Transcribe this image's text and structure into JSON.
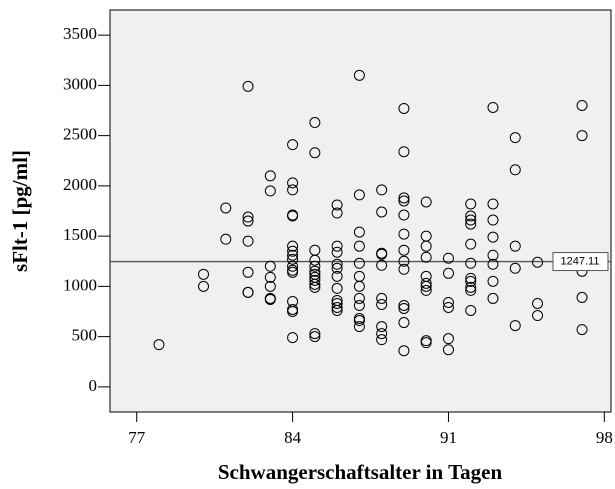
{
  "chart_data": {
    "type": "scatter",
    "x_label": "Schwangerschaftsalter in Tagen",
    "y_label": "sFlt-1 [pg/ml]",
    "x": [
      78,
      80,
      80,
      81,
      81,
      82,
      82,
      82,
      82,
      82,
      82,
      82,
      83,
      83,
      83,
      83,
      83,
      83,
      83,
      84,
      84,
      84,
      84,
      84,
      84,
      84,
      84,
      84,
      84,
      84,
      84,
      84,
      84,
      84,
      84,
      85,
      85,
      85,
      85,
      85,
      85,
      85,
      85,
      85,
      85,
      85,
      85,
      85,
      86,
      86,
      86,
      86,
      86,
      86,
      86,
      86,
      86,
      86,
      86,
      86,
      87,
      87,
      87,
      87,
      87,
      87,
      87,
      87,
      87,
      87,
      87,
      87,
      88,
      88,
      88,
      88,
      88,
      88,
      88,
      88,
      88,
      88,
      89,
      89,
      89,
      89,
      89,
      89,
      89,
      89,
      89,
      89,
      89,
      89,
      89,
      90,
      90,
      90,
      90,
      90,
      90,
      90,
      90,
      90,
      90,
      91,
      91,
      91,
      91,
      91,
      91,
      92,
      92,
      92,
      92,
      92,
      92,
      92,
      92,
      92,
      92,
      92,
      93,
      93,
      93,
      93,
      93,
      93,
      93,
      93,
      94,
      94,
      94,
      94,
      94,
      95,
      95,
      95,
      97,
      97,
      97,
      97,
      97
    ],
    "values": [
      420,
      1120,
      1000,
      1780,
      1470,
      2990,
      1690,
      1650,
      1450,
      1140,
      940,
      940,
      2100,
      1950,
      1200,
      1090,
      1000,
      880,
      870,
      2410,
      2030,
      1960,
      1710,
      1700,
      1400,
      1350,
      1310,
      1270,
      1200,
      1160,
      1140,
      850,
      770,
      750,
      490,
      2630,
      2330,
      1360,
      1260,
      1200,
      1150,
      1120,
      1090,
      1060,
      1020,
      990,
      530,
      500,
      1810,
      1730,
      1400,
      1340,
      1220,
      1180,
      1100,
      980,
      860,
      830,
      790,
      760,
      3100,
      1910,
      1540,
      1400,
      1230,
      1100,
      1000,
      880,
      810,
      680,
      660,
      600,
      1960,
      1740,
      1330,
      1320,
      1210,
      880,
      820,
      600,
      530,
      470,
      2770,
      2340,
      1880,
      1850,
      1710,
      1520,
      1360,
      1250,
      1170,
      810,
      780,
      640,
      360,
      1840,
      1500,
      1400,
      1290,
      1100,
      1030,
      1000,
      960,
      460,
      440,
      1280,
      1130,
      840,
      790,
      480,
      370,
      1820,
      1700,
      1660,
      1620,
      1420,
      1230,
      1080,
      1050,
      990,
      960,
      760,
      2780,
      1820,
      1660,
      1490,
      1310,
      1220,
      1050,
      880,
      2480,
      2160,
      1400,
      1180,
      610,
      1240,
      830,
      710,
      2800,
      2500,
      1150,
      890,
      570
    ],
    "reference_line": 1247.11,
    "color": "#000000",
    "xlim": [
      75.8,
      98.3
    ],
    "xticks": [
      77,
      84,
      91,
      98
    ],
    "ylim": [
      -250,
      3750
    ],
    "yticks": [
      0,
      500,
      1000,
      1500,
      2000,
      2500,
      3000,
      3500
    ]
  }
}
